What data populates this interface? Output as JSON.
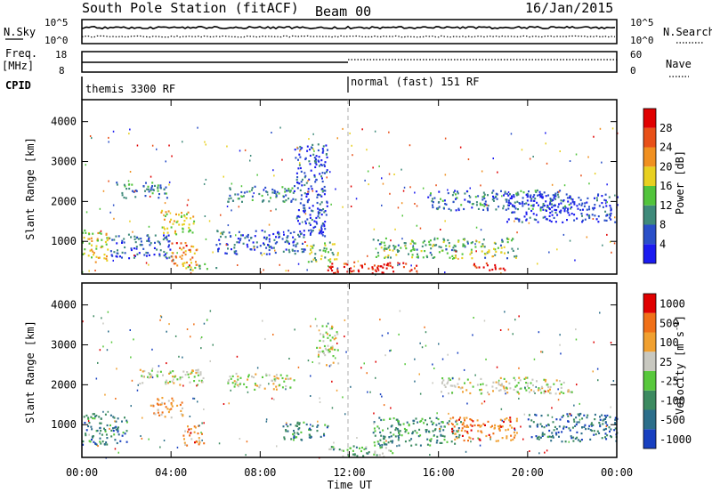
{
  "header": {
    "station": "South Pole Station (fitACF)",
    "beam": "Beam 00",
    "date": "16/Jan/2015"
  },
  "top_panels": {
    "nsky_label": "N.Sky",
    "nsky_ticks": [
      "10^5",
      "10^0"
    ],
    "nsearch_label": "N.Search",
    "nsearch_ticks": [
      "10^5",
      "10^0"
    ],
    "freq_label_1": "Freq.",
    "freq_label_2": "[MHz]",
    "freq_ticks": [
      "18",
      "8"
    ],
    "nave_label": "Nave",
    "nave_ticks": [
      "60",
      "0"
    ],
    "cpid_label": "CPID",
    "cpid_segments": [
      {
        "name": "themis 3300 RF",
        "start_hour": 0,
        "end_hour": 12
      },
      {
        "name": "normal (fast) 151 RF",
        "start_hour": 12,
        "end_hour": 24
      }
    ]
  },
  "chart_data": [
    {
      "type": "heatmap",
      "name": "power",
      "ylabel": "Slant Range [km]",
      "xlabel": "",
      "ylim": [
        180,
        4550
      ],
      "xlim": [
        0,
        24
      ],
      "y_ticks": [
        1000,
        2000,
        3000,
        4000
      ],
      "colorbar": {
        "label": "Power [dB]",
        "tick_labels": [
          "4",
          "8",
          "12",
          "16",
          "20",
          "24",
          "28"
        ],
        "tick_values": [
          4,
          8,
          12,
          16,
          20,
          24,
          28
        ],
        "range": [
          0,
          32
        ],
        "colors": [
          "#1b1bf0",
          "#2a4fc8",
          "#3f8a7a",
          "#52c43c",
          "#e8d020",
          "#f09020",
          "#e85018",
          "#e00000"
        ]
      },
      "scatter_regions": [
        {
          "x0": 0.0,
          "x1": 1.2,
          "y0": 500,
          "y1": 1300,
          "level": 0.55
        },
        {
          "x0": 1.2,
          "x1": 4.0,
          "y0": 600,
          "y1": 1200,
          "level": 0.2
        },
        {
          "x0": 1.5,
          "x1": 3.8,
          "y0": 2100,
          "y1": 2500,
          "level": 0.3
        },
        {
          "x0": 3.5,
          "x1": 5.0,
          "y0": 1200,
          "y1": 1800,
          "level": 0.55
        },
        {
          "x0": 4.0,
          "x1": 5.2,
          "y0": 400,
          "y1": 1000,
          "level": 0.75
        },
        {
          "x0": 6.5,
          "x1": 9.5,
          "y0": 2000,
          "y1": 2400,
          "level": 0.3
        },
        {
          "x0": 6.0,
          "x1": 10.0,
          "y0": 700,
          "y1": 1300,
          "level": 0.2
        },
        {
          "x0": 9.5,
          "x1": 11.0,
          "y0": 1100,
          "y1": 3500,
          "level": 0.15
        },
        {
          "x0": 10.0,
          "x1": 11.5,
          "y0": 500,
          "y1": 1000,
          "level": 0.45
        },
        {
          "x0": 11.0,
          "x1": 15.0,
          "y0": 220,
          "y1": 500,
          "level": 0.9
        },
        {
          "x0": 13.0,
          "x1": 19.5,
          "y0": 600,
          "y1": 1100,
          "level": 0.4
        },
        {
          "x0": 15.5,
          "x1": 22.0,
          "y0": 1800,
          "y1": 2300,
          "level": 0.25
        },
        {
          "x0": 19.0,
          "x1": 24.0,
          "y0": 1500,
          "y1": 2200,
          "level": 0.1
        },
        {
          "x0": 17.5,
          "x1": 19.0,
          "y0": 300,
          "y1": 500,
          "level": 0.95
        },
        {
          "x0": 4.5,
          "x1": 6.0,
          "y0": 300,
          "y1": 500,
          "level": 0.5
        }
      ]
    },
    {
      "type": "heatmap",
      "name": "velocity",
      "ylabel": "Slant Range [km]",
      "xlabel": "Time UT",
      "ylim": [
        180,
        4550
      ],
      "xlim": [
        0,
        24
      ],
      "y_ticks": [
        1000,
        2000,
        3000,
        4000
      ],
      "x_tick_labels": [
        "00:00",
        "04:00",
        "08:00",
        "12:00",
        "16:00",
        "20:00",
        "00:00"
      ],
      "x_tick_values": [
        0,
        4,
        8,
        12,
        16,
        20,
        24
      ],
      "colorbar": {
        "label": "Velocity [m s",
        "label_sup": "-1",
        "label_end": "]",
        "tick_labels": [
          "1000",
          "500",
          "100",
          "25",
          "-25",
          "-100",
          "-500",
          "-1000"
        ],
        "colors": [
          "#1840c0",
          "#2c6e8a",
          "#3c8a60",
          "#58c83c",
          "#c8c8c0",
          "#f0a030",
          "#f07018",
          "#e00000"
        ]
      },
      "scatter_regions": [
        {
          "x0": 0.0,
          "x1": 2.0,
          "y0": 500,
          "y1": 1300,
          "level": 0.25
        },
        {
          "x0": 2.5,
          "x1": 5.5,
          "y0": 2000,
          "y1": 2400,
          "level": 0.55
        },
        {
          "x0": 3.0,
          "x1": 4.5,
          "y0": 1200,
          "y1": 1700,
          "level": 0.7
        },
        {
          "x0": 4.5,
          "x1": 5.5,
          "y0": 500,
          "y1": 1000,
          "level": 0.75
        },
        {
          "x0": 6.5,
          "x1": 9.5,
          "y0": 1900,
          "y1": 2300,
          "level": 0.55
        },
        {
          "x0": 9.0,
          "x1": 11.0,
          "y0": 600,
          "y1": 1100,
          "level": 0.25
        },
        {
          "x0": 10.5,
          "x1": 11.5,
          "y0": 2500,
          "y1": 3500,
          "level": 0.55
        },
        {
          "x0": 11.0,
          "x1": 14.0,
          "y0": 220,
          "y1": 500,
          "level": 0.4
        },
        {
          "x0": 13.0,
          "x1": 17.0,
          "y0": 500,
          "y1": 1200,
          "level": 0.3
        },
        {
          "x0": 16.5,
          "x1": 19.5,
          "y0": 600,
          "y1": 1200,
          "level": 0.8
        },
        {
          "x0": 16.0,
          "x1": 22.0,
          "y0": 1800,
          "y1": 2200,
          "level": 0.55
        },
        {
          "x0": 20.0,
          "x1": 24.0,
          "y0": 600,
          "y1": 1300,
          "level": 0.2
        }
      ]
    }
  ]
}
